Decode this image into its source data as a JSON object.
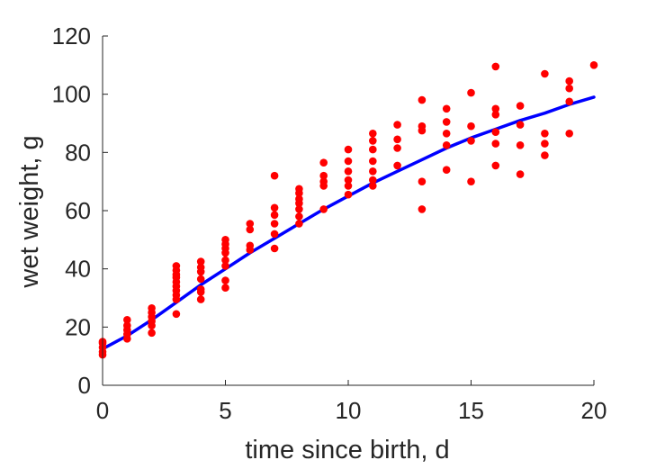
{
  "chart_data": {
    "type": "scatter",
    "title": "",
    "xlabel": "time since birth, d",
    "ylabel": "wet weight, g",
    "xlim": [
      0,
      20
    ],
    "ylim": [
      0,
      120
    ],
    "xticks": [
      0,
      5,
      10,
      15,
      20
    ],
    "yticks": [
      0,
      20,
      40,
      60,
      80,
      100,
      120
    ],
    "grid": false,
    "legend": "none",
    "colors": {
      "points": "#ff0000",
      "fit": "#0000ff",
      "axes": "#262626"
    },
    "series": [
      {
        "kind": "points",
        "points": [
          [
            0,
            10.5
          ],
          [
            0,
            11.5
          ],
          [
            0,
            13.0
          ],
          [
            0,
            14.5
          ],
          [
            0,
            15.0
          ],
          [
            1,
            16.0
          ],
          [
            1,
            17.5
          ],
          [
            1,
            19.0
          ],
          [
            1,
            20.5
          ],
          [
            1,
            22.5
          ],
          [
            2,
            18.0
          ],
          [
            2,
            20.5
          ],
          [
            2,
            22.0
          ],
          [
            2,
            23.5
          ],
          [
            2,
            25.0
          ],
          [
            2,
            26.5
          ],
          [
            3,
            24.5
          ],
          [
            3,
            29.5
          ],
          [
            3,
            31.0
          ],
          [
            3,
            32.5
          ],
          [
            3,
            34.0
          ],
          [
            3,
            35.5
          ],
          [
            3,
            37.0
          ],
          [
            3,
            38.0
          ],
          [
            3,
            39.5
          ],
          [
            3,
            41.0
          ],
          [
            4,
            29.5
          ],
          [
            4,
            32.0
          ],
          [
            4,
            33.0
          ],
          [
            4,
            36.5
          ],
          [
            4,
            39.0
          ],
          [
            4,
            40.5
          ],
          [
            4,
            42.5
          ],
          [
            5,
            33.5
          ],
          [
            5,
            36.0
          ],
          [
            5,
            41.0
          ],
          [
            5,
            43.0
          ],
          [
            5,
            45.5
          ],
          [
            5,
            47.0
          ],
          [
            5,
            48.5
          ],
          [
            5,
            50.0
          ],
          [
            6,
            46.5
          ],
          [
            6,
            48.0
          ],
          [
            6,
            53.5
          ],
          [
            6,
            55.5
          ],
          [
            7,
            47.0
          ],
          [
            7,
            52.0
          ],
          [
            7,
            55.5
          ],
          [
            7,
            58.5
          ],
          [
            7,
            61.0
          ],
          [
            7,
            72.0
          ],
          [
            8,
            55.5
          ],
          [
            8,
            58.0
          ],
          [
            8,
            60.5
          ],
          [
            8,
            62.5
          ],
          [
            8,
            64.0
          ],
          [
            8,
            66.0
          ],
          [
            8,
            67.5
          ],
          [
            9,
            60.5
          ],
          [
            9,
            68.5
          ],
          [
            9,
            70.0
          ],
          [
            9,
            72.0
          ],
          [
            9,
            76.5
          ],
          [
            10,
            65.5
          ],
          [
            10,
            68.5
          ],
          [
            10,
            70.5
          ],
          [
            10,
            73.5
          ],
          [
            10,
            77.0
          ],
          [
            10,
            81.0
          ],
          [
            11,
            68.5
          ],
          [
            11,
            70.5
          ],
          [
            11,
            73.5
          ],
          [
            11,
            77.0
          ],
          [
            11,
            81.0
          ],
          [
            11,
            84.0
          ],
          [
            11,
            86.5
          ],
          [
            12,
            75.5
          ],
          [
            12,
            81.5
          ],
          [
            12,
            84.5
          ],
          [
            12,
            89.5
          ],
          [
            13,
            60.5
          ],
          [
            13,
            70.0
          ],
          [
            13,
            87.5
          ],
          [
            13,
            89.0
          ],
          [
            13,
            98.0
          ],
          [
            14,
            74.0
          ],
          [
            14,
            82.5
          ],
          [
            14,
            86.5
          ],
          [
            14,
            90.5
          ],
          [
            14,
            95.0
          ],
          [
            15,
            70.0
          ],
          [
            15,
            84.0
          ],
          [
            15,
            89.0
          ],
          [
            15,
            100.5
          ],
          [
            16,
            75.5
          ],
          [
            16,
            83.0
          ],
          [
            16,
            87.0
          ],
          [
            16,
            93.0
          ],
          [
            16,
            95.0
          ],
          [
            16,
            109.5
          ],
          [
            17,
            72.5
          ],
          [
            17,
            82.5
          ],
          [
            17,
            89.5
          ],
          [
            17,
            96.0
          ],
          [
            18,
            79.0
          ],
          [
            18,
            83.0
          ],
          [
            18,
            86.5
          ],
          [
            18,
            107.0
          ],
          [
            19,
            86.5
          ],
          [
            19,
            97.5
          ],
          [
            19,
            102.0
          ],
          [
            19,
            104.5
          ],
          [
            20,
            110.0
          ]
        ]
      },
      {
        "kind": "line",
        "x": [
          0,
          1,
          2,
          3,
          4,
          5,
          6,
          7,
          8,
          9,
          10,
          11,
          12,
          13,
          14,
          15,
          16,
          17,
          18,
          19,
          20
        ],
        "y": [
          12.5,
          17.0,
          22.5,
          28.5,
          34.5,
          40.0,
          45.5,
          50.5,
          55.5,
          60.5,
          65.0,
          69.5,
          73.5,
          77.5,
          81.5,
          85.0,
          88.0,
          91.0,
          93.5,
          96.5,
          99.0
        ]
      }
    ]
  }
}
